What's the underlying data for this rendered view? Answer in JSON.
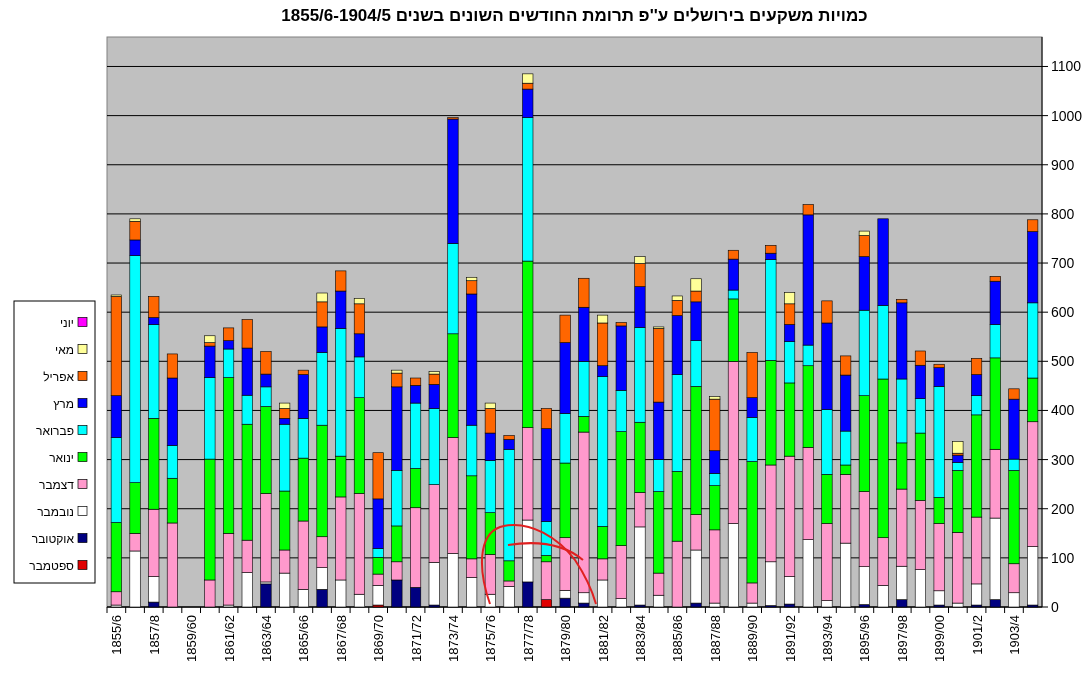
{
  "chart_data": {
    "type": "bar",
    "stacked": true,
    "title": "כמויות משקעים בירושלים ע''פ תרומת החודשים השונים בשנים 1855/6-1904/5",
    "categories": [
      "1855/6",
      null,
      "1857/8",
      null,
      "1859/60",
      null,
      "1861/62",
      null,
      "1863/64",
      null,
      "1865/66",
      null,
      "1867/68",
      null,
      "1869/70",
      null,
      "1871/72",
      null,
      "1873/74",
      null,
      "1875/76",
      null,
      "1877/78",
      null,
      "1879/80",
      null,
      "1881/82",
      null,
      "1883/84",
      null,
      "1885/86",
      null,
      "1887/88",
      null,
      "1889/90",
      null,
      "1891/92",
      null,
      "1893/94",
      null,
      "1895/96",
      null,
      "1897/98",
      null,
      "1899/00",
      null,
      "1901/2",
      null,
      "1903/4",
      null
    ],
    "series": [
      {
        "name": "ספטמבר",
        "color": "#e00000",
        "values": [
          0,
          0,
          0,
          0,
          0,
          0,
          0,
          0,
          0,
          0,
          0,
          0,
          0,
          0,
          4,
          0,
          0,
          0,
          0,
          0,
          0,
          0,
          0,
          15,
          0,
          0,
          0,
          0,
          0,
          0,
          0,
          0,
          0,
          0,
          0,
          0,
          0,
          0,
          0,
          0,
          0,
          0,
          0,
          0,
          0,
          0,
          0,
          0,
          0,
          0
        ]
      },
      {
        "name": "אוקטובר",
        "color": "#000080",
        "values": [
          0,
          0,
          10,
          0,
          0,
          0,
          0,
          0,
          47,
          0,
          0,
          36,
          0,
          0,
          0,
          55,
          40,
          4,
          0,
          0,
          0,
          0,
          51,
          0,
          18,
          8,
          0,
          0,
          4,
          0,
          0,
          8,
          0,
          0,
          0,
          3,
          6,
          0,
          0,
          0,
          5,
          0,
          15,
          0,
          4,
          0,
          4,
          15,
          0,
          4
        ]
      },
      {
        "name": "נובמבר",
        "color": "#ffffff",
        "values": [
          4,
          114,
          52,
          0,
          0,
          0,
          4,
          70,
          4,
          69,
          36,
          44,
          55,
          26,
          40,
          0,
          0,
          87,
          109,
          60,
          26,
          42,
          126,
          0,
          16,
          21,
          55,
          17,
          159,
          24,
          0,
          108,
          8,
          170,
          8,
          89,
          56,
          137,
          13,
          130,
          77,
          44,
          68,
          76,
          29,
          8,
          43,
          166,
          29,
          119
        ]
      },
      {
        "name": "דצמבר",
        "color": "#ff99cc",
        "values": [
          27,
          36,
          137,
          171,
          0,
          55,
          146,
          66,
          180,
          47,
          139,
          63,
          169,
          205,
          23,
          37,
          162,
          158,
          236,
          38,
          81,
          11,
          188,
          77,
          107,
          327,
          43,
          108,
          70,
          45,
          134,
          72,
          149,
          330,
          41,
          197,
          245,
          188,
          157,
          140,
          153,
          97,
          157,
          141,
          137,
          144,
          136,
          140,
          59,
          254
        ]
      },
      {
        "name": "ינואר",
        "color": "#00ff00",
        "values": [
          141,
          103,
          185,
          91,
          0,
          246,
          317,
          236,
          177,
          120,
          128,
          227,
          83,
          195,
          34,
          73,
          80,
          0,
          211,
          169,
          85,
          41,
          339,
          13,
          152,
          32,
          66,
          232,
          143,
          166,
          142,
          261,
          90,
          127,
          247,
          213,
          149,
          166,
          100,
          19,
          195,
          323,
          94,
          137,
          53,
          126,
          208,
          186,
          190,
          89
        ]
      },
      {
        "name": "פברואר",
        "color": "#00ffff",
        "values": [
          173,
          462,
          191,
          67,
          0,
          166,
          58,
          59,
          40,
          136,
          81,
          148,
          260,
          83,
          18,
          113,
          133,
          155,
          184,
          103,
          106,
          227,
          292,
          69,
          101,
          112,
          305,
          84,
          193,
          65,
          197,
          93,
          25,
          18,
          90,
          205,
          84,
          42,
          132,
          69,
          174,
          150,
          130,
          70,
          226,
          16,
          39,
          68,
          23,
          153
        ]
      },
      {
        "name": "מרץ",
        "color": "#0000ff",
        "values": [
          85,
          32,
          14,
          137,
          0,
          64,
          17,
          96,
          26,
          12,
          89,
          52,
          76,
          47,
          101,
          170,
          36,
          49,
          253,
          267,
          56,
          20,
          58,
          189,
          144,
          110,
          22,
          131,
          83,
          117,
          120,
          79,
          46,
          63,
          40,
          13,
          35,
          265,
          176,
          114,
          109,
          176,
          155,
          68,
          38,
          15,
          43,
          88,
          122,
          145
        ]
      },
      {
        "name": "אפריל",
        "color": "#ff6600",
        "values": [
          202,
          38,
          43,
          49,
          0,
          7,
          26,
          58,
          46,
          20,
          9,
          51,
          41,
          61,
          94,
          28,
          15,
          21,
          3,
          27,
          50,
          8,
          12,
          41,
          56,
          59,
          87,
          7,
          47,
          150,
          31,
          22,
          105,
          18,
          92,
          16,
          42,
          21,
          45,
          39,
          43,
          0,
          7,
          29,
          7,
          4,
          33,
          10,
          21,
          24
        ]
      },
      {
        "name": "מאי",
        "color": "#ffff99",
        "values": [
          3,
          5,
          0,
          0,
          0,
          14,
          0,
          0,
          0,
          11,
          0,
          18,
          0,
          11,
          0,
          6,
          0,
          5,
          0,
          7,
          11,
          0,
          19,
          0,
          0,
          0,
          16,
          0,
          14,
          3,
          9,
          25,
          5,
          0,
          0,
          0,
          23,
          0,
          0,
          0,
          9,
          0,
          0,
          0,
          0,
          24,
          0,
          0,
          0,
          0
        ]
      },
      {
        "name": "יוני",
        "color": "#ff00ff",
        "values": [
          0,
          0,
          0,
          0,
          0,
          0,
          0,
          0,
          0,
          0,
          0,
          0,
          0,
          0,
          0,
          0,
          0,
          0,
          0,
          0,
          0,
          0,
          0,
          0,
          0,
          0,
          0,
          0,
          0,
          0,
          0,
          0,
          0,
          0,
          0,
          0,
          0,
          0,
          0,
          0,
          0,
          0,
          0,
          0,
          0,
          0,
          0,
          0,
          0,
          0
        ]
      }
    ],
    "ylim": [
      0,
      1160
    ],
    "yticks": [
      0,
      100,
      200,
      300,
      400,
      500,
      600,
      700,
      800,
      900,
      1000,
      1100
    ],
    "grid": "y",
    "legend": "left"
  }
}
